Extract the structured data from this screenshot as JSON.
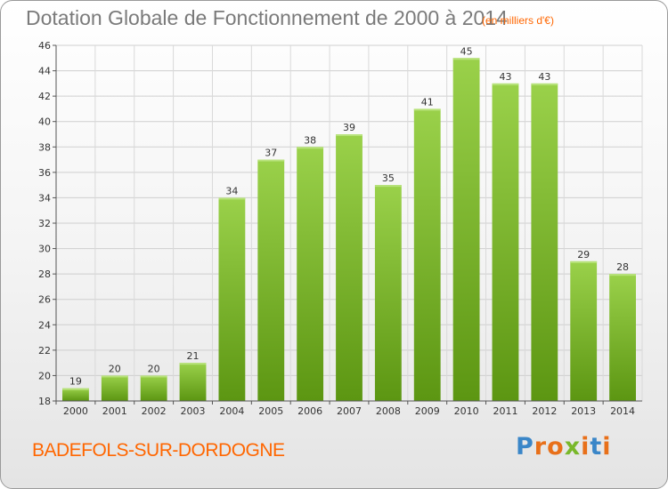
{
  "title": "Dotation Globale de Fonctionnement de 2000 à 2014",
  "subtitle": "(en milliers d'€)",
  "commune": "BADEFOLS-SUR-DORDOGNE",
  "logo": {
    "letters": [
      "P",
      "r",
      "o",
      "x",
      "i",
      "t",
      "i"
    ],
    "colors": [
      "#3a86c8",
      "#e8701a",
      "#e8701a",
      "#79b82a",
      "#e8701a",
      "#3a86c8",
      "#e8701a"
    ]
  },
  "chart_data": {
    "type": "bar",
    "categories": [
      "2000",
      "2001",
      "2002",
      "2003",
      "2004",
      "2005",
      "2006",
      "2007",
      "2008",
      "2009",
      "2010",
      "2011",
      "2012",
      "2013",
      "2014"
    ],
    "values": [
      19,
      20,
      20,
      21,
      34,
      37,
      38,
      39,
      35,
      41,
      45,
      43,
      43,
      29,
      28
    ],
    "ylim": [
      18,
      46
    ],
    "yticks": [
      18,
      20,
      22,
      24,
      26,
      28,
      30,
      32,
      34,
      36,
      38,
      40,
      42,
      44,
      46
    ],
    "grid": true,
    "bar_color": "#79b82a",
    "title": "Dotation Globale de Fonctionnement de 2000 à 2014",
    "xlabel": "",
    "ylabel": ""
  }
}
